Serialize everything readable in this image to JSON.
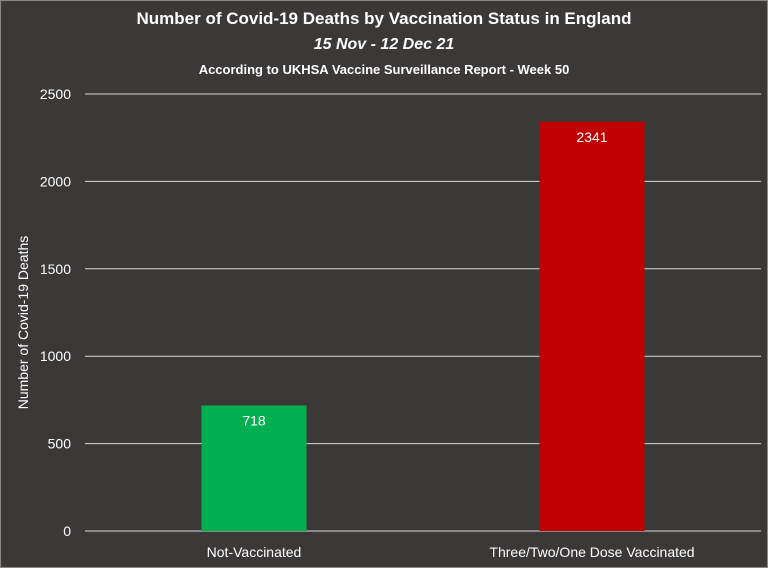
{
  "chart_data": {
    "type": "bar",
    "title": "Number of Covid-19 Deaths by Vaccination Status in England",
    "subtitle": "15 Nov - 12 Dec 21",
    "subtitle2": "According to UKHSA Vaccine Surveillance Report - Week 50",
    "xlabel": "",
    "ylabel": "Number of Covid-19 Deaths",
    "ylim": [
      0,
      2500
    ],
    "yticks": [
      0,
      500,
      1000,
      1500,
      2000,
      2500
    ],
    "grid": true,
    "categories": [
      "Not-Vaccinated",
      "Three/Two/One Dose Vaccinated"
    ],
    "values": [
      718,
      2341
    ],
    "colors": [
      "#00b050",
      "#c00000"
    ],
    "data_labels": [
      "718",
      "2341"
    ]
  }
}
